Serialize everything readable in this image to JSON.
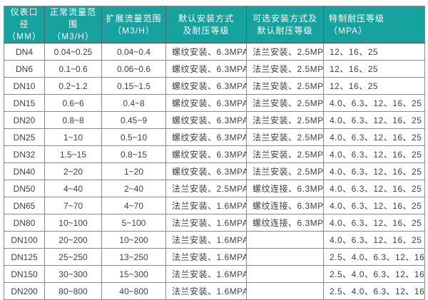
{
  "table": {
    "columns": [
      {
        "line1": "仪表口径",
        "line2": "（MM）"
      },
      {
        "line1": "正常流量范围",
        "line2": "（M3/H）"
      },
      {
        "line1": "扩展流量范围",
        "line2": "（M3/H）"
      },
      {
        "line1": "默认安装方式",
        "line2": "及耐压等级"
      },
      {
        "line1": "可选安装方式及",
        "line2": "默认耐压等级"
      },
      {
        "line1": "特制耐压等级",
        "line2": "（MPA）"
      }
    ],
    "rows": [
      [
        "DN4",
        "0.04~0.25",
        "0.04~0.4",
        "螺纹安装、6.3MPA",
        "法兰安装、2.5MPA",
        "12、16、25"
      ],
      [
        "DN6",
        "0.1~0.6",
        "0.06~0.6",
        "螺纹安装、6.3MPA",
        "法兰安装、2.5MPA",
        "12、16、25"
      ],
      [
        "DN10",
        "0.2~1.2",
        "0.15~1.5",
        "螺纹安装、6.3MPA",
        "法兰安装、2.5MPA",
        "12、16、25"
      ],
      [
        "DN15",
        "0.6~6",
        "0.4~8",
        "螺纹安装、6.3MPA",
        "法兰安装、2.5MPA",
        "4.0、6.3、12、16、25"
      ],
      [
        "DN20",
        "0.8~8",
        "0.45~9",
        "螺纹安装、6.3MPA",
        "法兰安装、2.5MPA",
        "4.0、6.3、12、16、25"
      ],
      [
        "DN25",
        "1~10",
        "0.5~10",
        "螺纹安装、6.3MPA",
        "法兰安装、2.5MPA",
        "4.0、6.3、12、16、25"
      ],
      [
        "DN32",
        "1.5~15",
        "0.8~15",
        "螺纹安装、6.3MPA",
        "法兰安装、2.5MPA",
        "4.0、6.3、12、16、25"
      ],
      [
        "DN40",
        "2~20",
        "1~20",
        "螺纹安装、6.3MPA",
        "法兰安装、2.5MPA",
        "4.0、6.3、12、16、25"
      ],
      [
        "DN50",
        "4~40",
        "2~40",
        "法兰安装、2.5MPA",
        "螺纹连接、6.3MPA",
        "4.0、6.3、12、16、25"
      ],
      [
        "DN65",
        "7~70",
        "4~70",
        "法兰安装、1.6MPA",
        "螺纹连接、6.3MPA",
        "4.0、6.3、12、16、25"
      ],
      [
        "DN80",
        "10~100",
        "5~100",
        "法兰安装、1.6MPA",
        "螺纹连接、6.3MPA",
        "4.0、6.3、12、16、25"
      ],
      [
        "DN100",
        "20~200",
        "10~200",
        "法兰安装、1.6MPA",
        "",
        "4.0、6.3、12、16、25"
      ],
      [
        "DN125",
        "25~250",
        "13~250",
        "法兰安装、1.6MPA",
        "",
        "2.5、4.0、6.3、12、16"
      ],
      [
        "DN150",
        "30~300",
        "15~300",
        "法兰安装、1.6MPA",
        "",
        "2.5、4.0、6.3、12、16"
      ],
      [
        "DN200",
        "80~800",
        "40~800",
        "法兰安装、1.6MPA",
        "",
        "2.5、4.0、6.3、12、16"
      ]
    ],
    "colors": {
      "header_bg": "#16a3a0",
      "header_text": "#ffffff",
      "header_divider": "#456a70",
      "grid_line": "#8a8a8a",
      "body_text": "#3f3f3f",
      "body_bg": "#ffffff"
    }
  }
}
